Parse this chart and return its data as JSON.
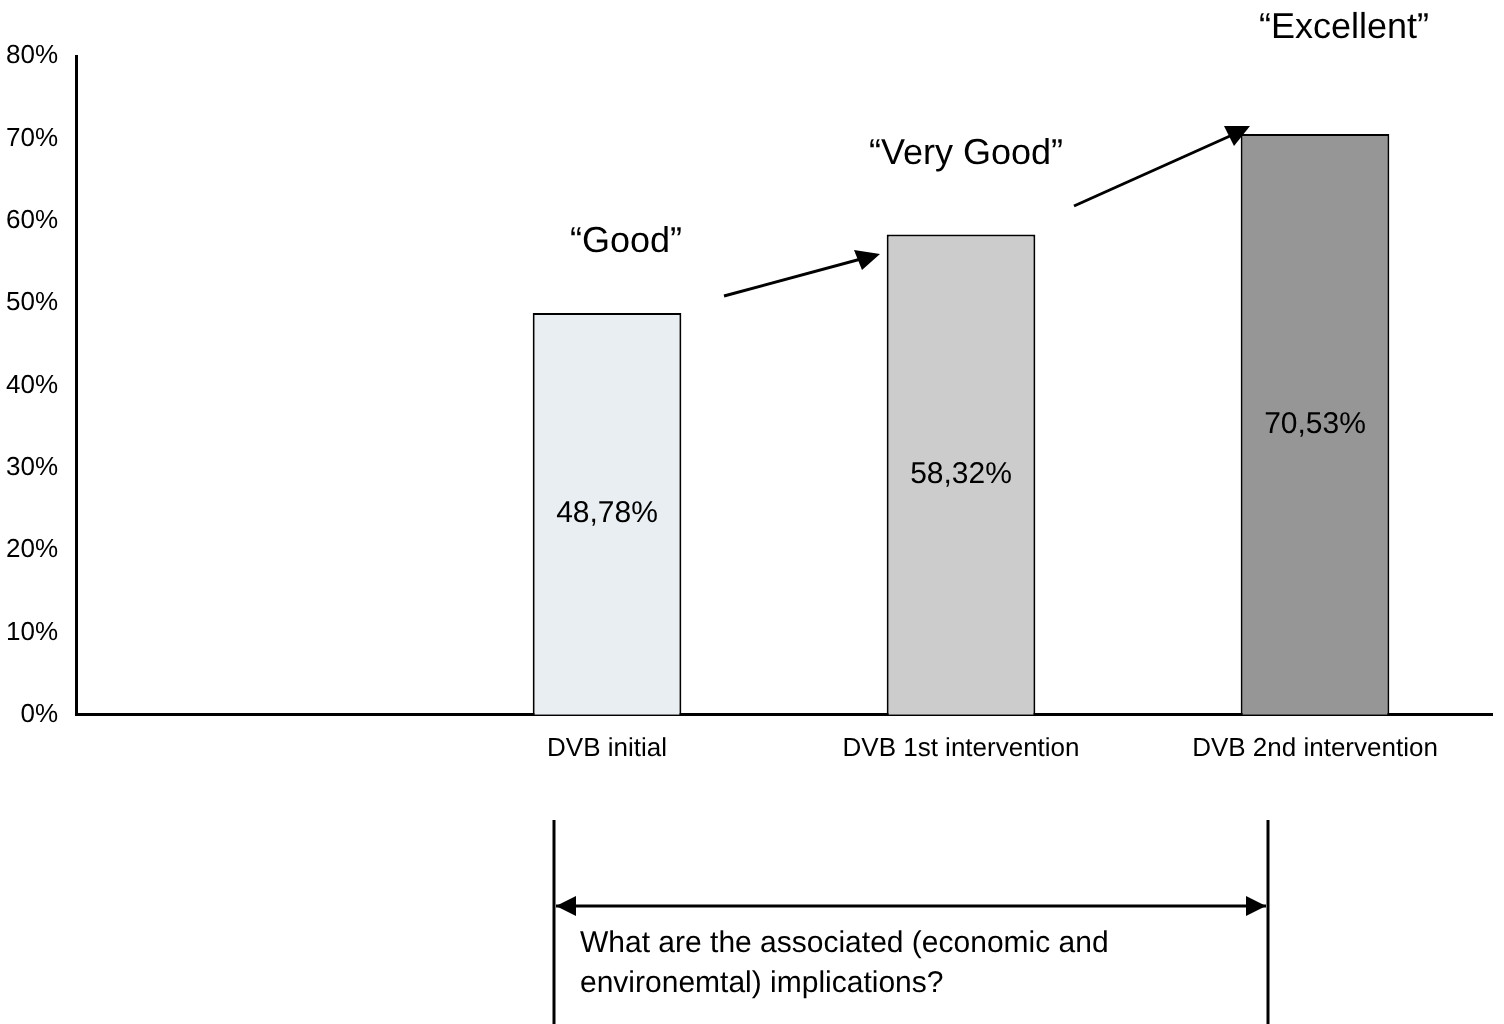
{
  "chart_data": {
    "type": "bar",
    "categories": [
      null,
      "DVB initial",
      "DVB 1st intervention",
      "DVB 2nd intervention"
    ],
    "values": [
      null,
      48.78,
      58.32,
      70.53
    ],
    "colors": [
      "#ffffff",
      "#e9eef2",
      "#cccccc",
      "#969696"
    ],
    "value_labels": [
      null,
      "48,78%",
      "58,32%",
      "70,53%"
    ],
    "ylim": [
      0,
      80
    ],
    "yticks": [
      {
        "value": 0,
        "label": "0%"
      },
      {
        "value": 10,
        "label": "10%"
      },
      {
        "value": 20,
        "label": "20%"
      },
      {
        "value": 30,
        "label": "30%"
      },
      {
        "value": 40,
        "label": "40%"
      },
      {
        "value": 50,
        "label": "50%"
      },
      {
        "value": 60,
        "label": "60%"
      },
      {
        "value": 70,
        "label": "70%"
      },
      {
        "value": 80,
        "label": "80%"
      }
    ],
    "grid": false,
    "annotations": [
      "“Good”",
      "“Very Good”",
      "“Excellent”",
      "What are the associated (economic and environemtal) implications?"
    ]
  }
}
